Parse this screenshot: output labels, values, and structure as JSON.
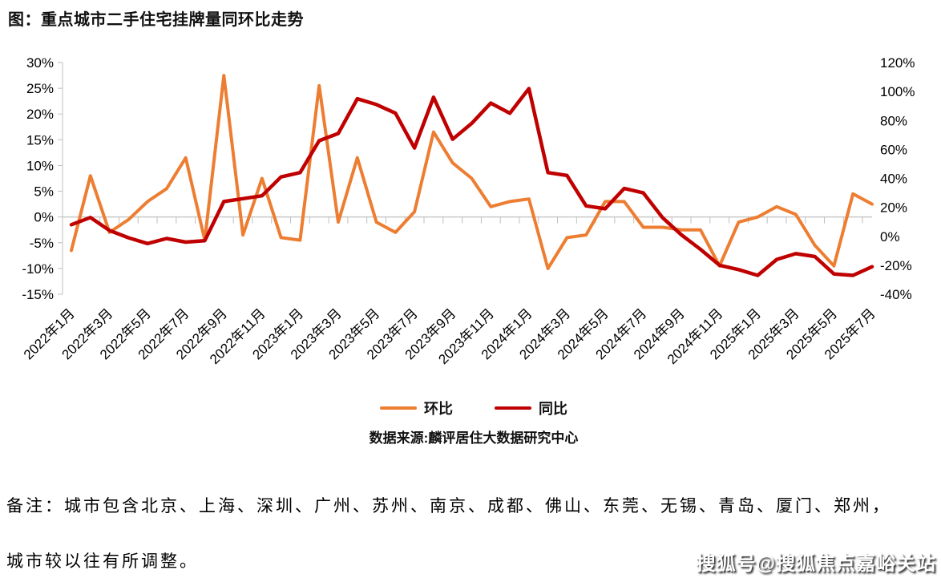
{
  "title": "图：重点城市二手住宅挂牌量同环比走势",
  "source_note": "数据来源:麟评居住大数据研究中心",
  "footer": {
    "line1": "备注：城市包含北京、上海、深圳、广州、苏州、南京、成都、佛山、东莞、无锡、青岛、厦门、郑州，",
    "line2": "城市较以往有所调整。"
  },
  "watermark": "搜狐号@搜狐焦点嘉峪关站",
  "colors": {
    "mom_line": "#ED7D31",
    "yoy_line": "#C00000",
    "axis": "#BFBFBF",
    "gridline": "#C9C9C9",
    "text": "#000000"
  },
  "chart_data": {
    "type": "line",
    "title": "重点城市二手住宅挂牌量同环比走势",
    "x": [
      "2022年1月",
      "2022年2月",
      "2022年3月",
      "2022年4月",
      "2022年5月",
      "2022年6月",
      "2022年7月",
      "2022年8月",
      "2022年9月",
      "2022年10月",
      "2022年11月",
      "2022年12月",
      "2023年1月",
      "2023年2月",
      "2023年3月",
      "2023年4月",
      "2023年5月",
      "2023年6月",
      "2023年7月",
      "2023年8月",
      "2023年9月",
      "2023年10月",
      "2023年11月",
      "2023年12月",
      "2024年1月",
      "2024年2月",
      "2024年3月",
      "2024年4月",
      "2024年5月",
      "2024年6月",
      "2024年7月",
      "2024年8月",
      "2024年9月",
      "2024年10月",
      "2024年11月",
      "2024年12月",
      "2025年1月",
      "2025年2月",
      "2025年3月",
      "2025年4月",
      "2025年5月",
      "2025年6月",
      "2025年7月"
    ],
    "label_every": 2,
    "series": [
      {
        "name": "环比",
        "axis": "left",
        "color": "#ED7D31",
        "width": 4,
        "values": [
          -6.5,
          8,
          -3,
          -0.5,
          3,
          5.5,
          11.5,
          -4.5,
          27.5,
          -3.5,
          7.5,
          -4,
          -4.5,
          25.5,
          -1,
          11.5,
          -1,
          -3,
          1,
          16.5,
          10.5,
          7.5,
          2,
          3,
          3.5,
          -10,
          -4,
          -3.5,
          3,
          3,
          -2,
          -2,
          -2.5,
          -2.5,
          -9.5,
          -1,
          0,
          2,
          0.5,
          -5.5,
          -9.5,
          4.5,
          2.5
        ]
      },
      {
        "name": "同比",
        "axis": "right",
        "color": "#C00000",
        "width": 4.5,
        "values": [
          8,
          13,
          4,
          -1,
          -5,
          -1.5,
          -4,
          -3,
          24,
          26,
          28,
          41,
          44,
          66,
          71,
          95,
          91,
          85,
          61,
          96,
          67,
          78,
          92,
          85,
          102,
          44,
          42,
          21,
          19,
          33,
          30,
          13,
          1,
          -9,
          -20,
          -23,
          -27,
          -16,
          -12,
          -14,
          -26,
          -27,
          -21
        ]
      }
    ],
    "left_axis": {
      "min": -15,
      "max": 30,
      "step": 5,
      "unit": "%"
    },
    "right_axis": {
      "min": -40,
      "max": 120,
      "step": 20,
      "unit": "%"
    },
    "grid": "single-zero-line",
    "legend_position": "bottom"
  }
}
